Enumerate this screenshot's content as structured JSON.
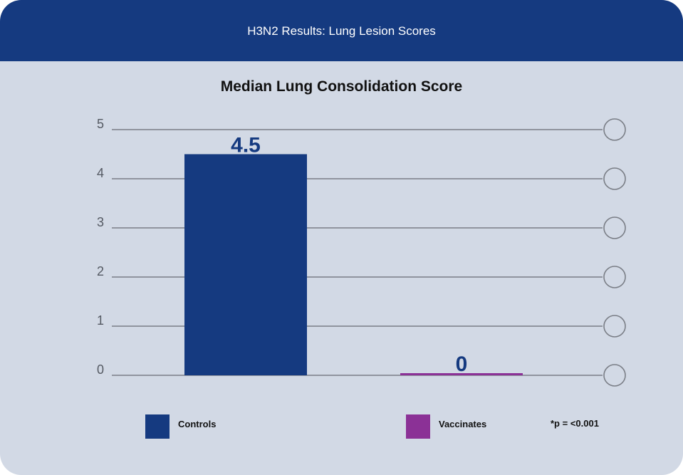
{
  "header": {
    "title": "H3N2 Results: Lung Lesion Scores"
  },
  "colors": {
    "header_bg": "#153a80",
    "panel_bg": "#d2d9e5",
    "controls": "#153a80",
    "vaccinates": "#8b3196",
    "grid": "#7a7e86",
    "value_label": "#153a80"
  },
  "chart_data": {
    "type": "bar",
    "title": "Median Lung Consolidation Score",
    "xlabel": "",
    "ylabel": "",
    "ylim": [
      0,
      5
    ],
    "yticks": [
      "0",
      "1",
      "2",
      "3",
      "4",
      "5"
    ],
    "grid": true,
    "categories": [
      "Controls",
      "Vaccinates"
    ],
    "values": [
      4.5,
      0
    ],
    "data_labels": [
      "4.5",
      "0"
    ],
    "legend": {
      "placement": "bottom",
      "entries": [
        {
          "label": "Controls",
          "color": "#153a80"
        },
        {
          "label": "Vaccinates",
          "color": "#8b3196"
        }
      ]
    },
    "annotation": "*p = <0.001"
  }
}
